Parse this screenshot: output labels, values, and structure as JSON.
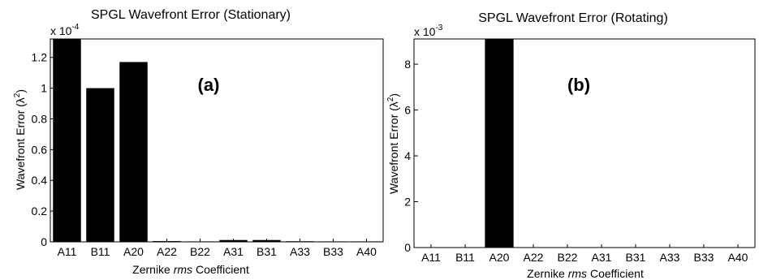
{
  "panels": [
    {
      "title": "SPGL Wavefront Error (Stationary)",
      "label": "(a)",
      "ylabel_text": "Wavefront Error (λ",
      "ylabel_sup": "2",
      "ylabel_close": ")",
      "xlabel_pre": "Zernike ",
      "xlabel_em": "rms",
      "xlabel_post": " Coefficient",
      "multiplier_base": "x 10",
      "multiplier_exp": "-4",
      "yticks": [
        "0",
        "0.2",
        "0.4",
        "0.6",
        "0.8",
        "1",
        "1.2"
      ]
    },
    {
      "title": "SPGL Wavefront Error (Rotating)",
      "label": "(b)",
      "ylabel_text": "Wavefront Error (λ",
      "ylabel_sup": "2",
      "ylabel_close": ")",
      "xlabel_pre": "Zernike ",
      "xlabel_em": "rms",
      "xlabel_post": " Coefficient",
      "multiplier_base": "x 10",
      "multiplier_exp": "-3",
      "yticks": [
        "0",
        "2",
        "4",
        "6",
        "8"
      ]
    }
  ],
  "chart_data": [
    {
      "type": "bar",
      "title": "SPGL Wavefront Error (Stationary)",
      "xlabel": "Zernike rms Coefficient",
      "ylabel": "Wavefront Error (λ2)",
      "y_multiplier": "x 10^-4",
      "categories": [
        "A11",
        "B11",
        "A20",
        "A22",
        "B22",
        "A31",
        "B31",
        "A33",
        "B33",
        "A40"
      ],
      "values": [
        1.32,
        1.0,
        1.17,
        0.005,
        0.003,
        0.012,
        0.012,
        0.004,
        0.003,
        0.003
      ],
      "ylim": [
        0,
        1.32
      ],
      "color": "#000000",
      "grid": false
    },
    {
      "type": "bar",
      "title": "SPGL Wavefront Error (Rotating)",
      "xlabel": "Zernike rms Coefficient",
      "ylabel": "Wavefront Error (λ2)",
      "y_multiplier": "x 10^-3",
      "categories": [
        "A11",
        "B11",
        "A20",
        "A22",
        "B22",
        "A31",
        "B31",
        "A33",
        "B33",
        "A40"
      ],
      "values": [
        0.002,
        0.002,
        9.1,
        0.004,
        0.003,
        0.003,
        0.003,
        0.003,
        0.002,
        0.002
      ],
      "ylim": [
        0,
        9.1
      ],
      "color": "#000000",
      "grid": false
    }
  ]
}
